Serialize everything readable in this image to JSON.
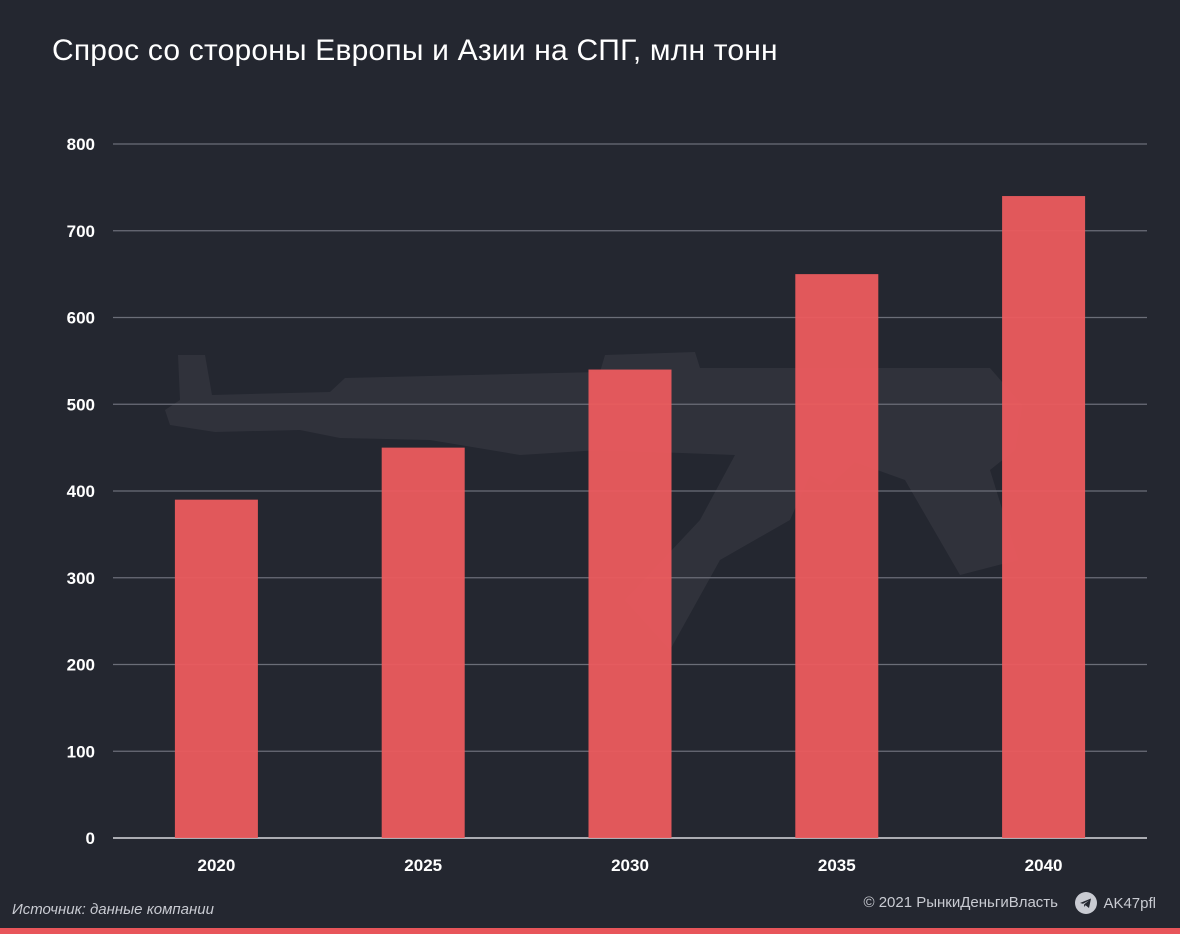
{
  "title": "Спрос со стороны Европы и Азии на СПГ, млн тонн",
  "source": "Источник: данные компании",
  "copyright": "© 2021  РынкиДеньгиВласть",
  "telegram_handle": "AK47pfl",
  "colors": {
    "background": "#242730",
    "bar": "#ec5b5e",
    "gridline": "#6b6e78",
    "accent_bar": "#e8555a"
  },
  "chart_data": {
    "type": "bar",
    "categories": [
      "2020",
      "2025",
      "2030",
      "2035",
      "2040"
    ],
    "values": [
      390,
      450,
      540,
      650,
      740
    ],
    "title": "Спрос со стороны Европы и Азии на СПГ, млн тонн",
    "xlabel": "",
    "ylabel": "",
    "ylim": [
      0,
      800
    ],
    "yticks": [
      0,
      100,
      200,
      300,
      400,
      500,
      600,
      700,
      800
    ],
    "grid": true,
    "legend": "none"
  }
}
